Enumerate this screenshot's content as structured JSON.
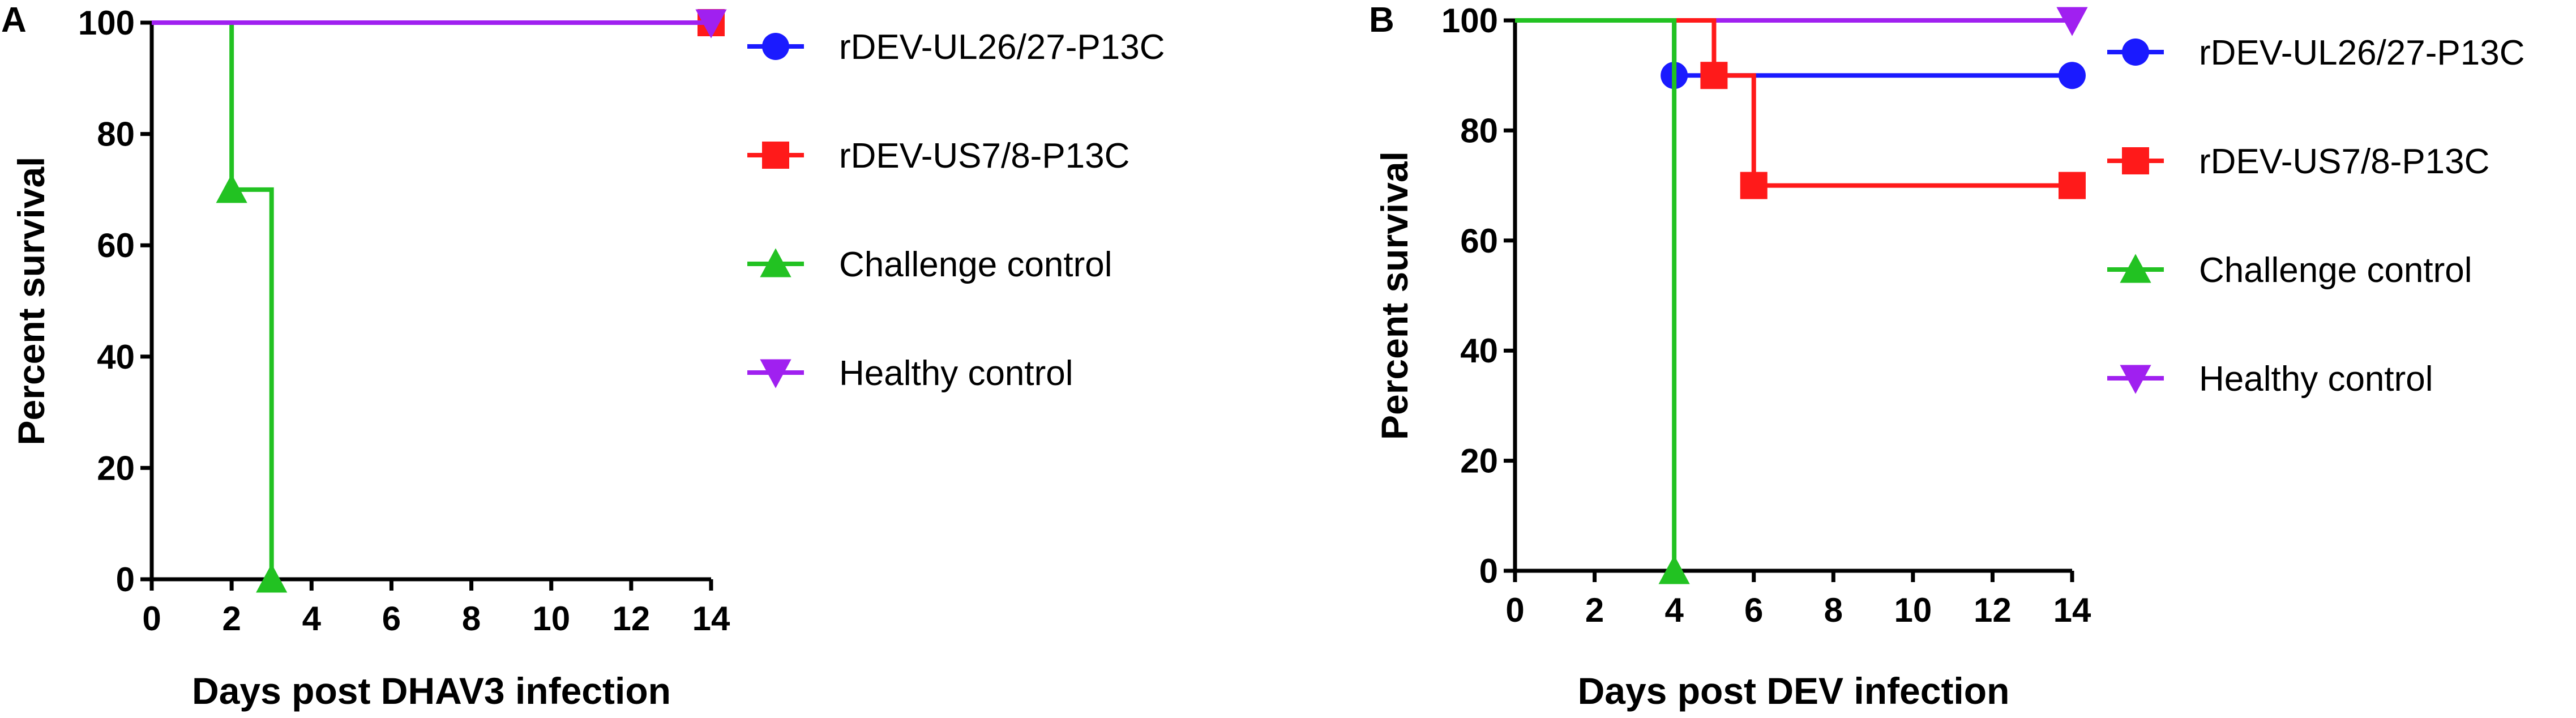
{
  "chart_data": [
    {
      "type": "line",
      "panel": "A",
      "xlabel": "Days post DHAV3 infection",
      "ylabel": "Percent survival",
      "xlim": [
        0,
        14
      ],
      "ylim": [
        0,
        100
      ],
      "xticks": [
        0,
        2,
        4,
        6,
        8,
        10,
        12,
        14
      ],
      "yticks": [
        0,
        20,
        40,
        60,
        80,
        100
      ],
      "step": true,
      "legend_position": "right",
      "series": [
        {
          "name": "rDEV-UL26/27-P13C",
          "color": "#1a1aff",
          "marker": "circle",
          "x": [
            0,
            14
          ],
          "y": [
            100,
            100
          ],
          "marker_points": [
            [
              14,
              100
            ]
          ]
        },
        {
          "name": "rDEV-US7/8-P13C",
          "color": "#ff1a1a",
          "marker": "square",
          "x": [
            0,
            14
          ],
          "y": [
            100,
            100
          ],
          "marker_points": [
            [
              14,
              100
            ]
          ]
        },
        {
          "name": "Challenge control",
          "color": "#22c222",
          "marker": "triangle-up",
          "x": [
            0,
            2,
            3
          ],
          "y": [
            100,
            70,
            0
          ],
          "marker_points": [
            [
              2,
              70
            ],
            [
              3,
              0
            ]
          ]
        },
        {
          "name": "Healthy control",
          "color": "#a020f0",
          "marker": "triangle-down",
          "x": [
            0,
            14
          ],
          "y": [
            100,
            100
          ],
          "marker_points": [
            [
              14,
              100
            ]
          ]
        }
      ]
    },
    {
      "type": "line",
      "panel": "B",
      "xlabel": "Days post DEV infection",
      "ylabel": "Percent survival",
      "xlim": [
        0,
        14
      ],
      "ylim": [
        0,
        100
      ],
      "xticks": [
        0,
        2,
        4,
        6,
        8,
        10,
        12,
        14
      ],
      "yticks": [
        0,
        20,
        40,
        60,
        80,
        100
      ],
      "step": true,
      "legend_position": "right",
      "series": [
        {
          "name": "Healthy control",
          "color": "#a020f0",
          "marker": "triangle-down",
          "x": [
            0,
            14
          ],
          "y": [
            100,
            100
          ],
          "marker_points": [
            [
              14,
              100
            ]
          ]
        },
        {
          "name": "rDEV-UL26/27-P13C",
          "color": "#1a1aff",
          "marker": "circle",
          "x": [
            0,
            4,
            14
          ],
          "y": [
            100,
            90,
            90
          ],
          "marker_points": [
            [
              4,
              90
            ],
            [
              14,
              90
            ]
          ]
        },
        {
          "name": "rDEV-US7/8-P13C",
          "color": "#ff1a1a",
          "marker": "square",
          "x": [
            0,
            5,
            6,
            14
          ],
          "y": [
            100,
            90,
            70,
            70
          ],
          "marker_points": [
            [
              5,
              90
            ],
            [
              6,
              70
            ],
            [
              14,
              70
            ]
          ]
        },
        {
          "name": "Challenge control",
          "color": "#22c222",
          "marker": "triangle-up",
          "x": [
            0,
            4
          ],
          "y": [
            100,
            0
          ],
          "marker_points": [
            [
              4,
              0
            ]
          ]
        }
      ],
      "legend_order": [
        "rDEV-UL26/27-P13C",
        "rDEV-US7/8-P13C",
        "Challenge control",
        "Healthy control"
      ]
    }
  ]
}
